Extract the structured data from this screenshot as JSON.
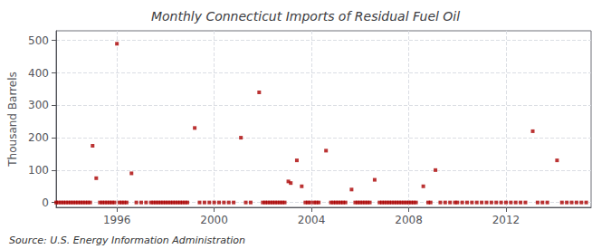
{
  "chart_data": {
    "type": "scatter",
    "title": "Monthly Connecticut Imports of Residual Fuel Oil",
    "ylabel": "Thousand Barrels",
    "annotation": "Source: U.S. Energy Information Administration",
    "color": "#aa0000",
    "marker": "square",
    "grid": true,
    "xlim": [
      1993.5,
      2015.5
    ],
    "ylim": [
      -15,
      530
    ],
    "xticks": [
      1996,
      2000,
      2004,
      2008,
      2012
    ],
    "yticks": [
      0,
      100,
      200,
      300,
      400,
      500
    ],
    "x": [
      1993.5,
      1993.6,
      1993.7,
      1993.8,
      1993.9,
      1994.0,
      1994.1,
      1994.2,
      1994.3,
      1994.4,
      1994.5,
      1994.6,
      1994.7,
      1994.8,
      1994.9,
      1995.0,
      1995.15,
      1995.3,
      1995.4,
      1995.5,
      1995.6,
      1995.7,
      1995.8,
      1995.9,
      1996.0,
      1996.1,
      1996.2,
      1996.3,
      1996.4,
      1996.6,
      1996.8,
      1997.0,
      1997.2,
      1997.4,
      1997.5,
      1997.6,
      1997.7,
      1997.8,
      1997.9,
      1998.0,
      1998.1,
      1998.2,
      1998.3,
      1998.4,
      1998.5,
      1998.6,
      1998.7,
      1998.8,
      1998.9,
      1999.2,
      1999.4,
      1999.6,
      1999.8,
      2000.0,
      2000.2,
      2000.4,
      2000.6,
      2000.8,
      2001.1,
      2001.3,
      2001.5,
      2001.85,
      2002.0,
      2002.1,
      2002.2,
      2002.3,
      2002.4,
      2002.5,
      2002.6,
      2002.7,
      2002.8,
      2002.9,
      2003.05,
      2003.15,
      2003.4,
      2003.6,
      2003.75,
      2003.85,
      2003.95,
      2004.1,
      2004.2,
      2004.3,
      2004.6,
      2004.8,
      2004.9,
      2005.0,
      2005.1,
      2005.2,
      2005.3,
      2005.4,
      2005.65,
      2005.8,
      2005.9,
      2006.0,
      2006.1,
      2006.2,
      2006.3,
      2006.4,
      2006.6,
      2006.8,
      2006.9,
      2007.0,
      2007.1,
      2007.2,
      2007.3,
      2007.4,
      2007.5,
      2007.6,
      2007.7,
      2007.8,
      2007.9,
      2008.0,
      2008.1,
      2008.2,
      2008.3,
      2008.6,
      2008.8,
      2008.9,
      2009.1,
      2009.3,
      2009.5,
      2009.7,
      2009.9,
      2010.0,
      2010.2,
      2010.4,
      2010.6,
      2010.8,
      2011.0,
      2011.2,
      2011.4,
      2011.6,
      2011.8,
      2012.0,
      2012.2,
      2012.4,
      2012.6,
      2012.8,
      2013.1,
      2013.3,
      2013.5,
      2013.7,
      2014.1,
      2014.3,
      2014.5,
      2014.7,
      2014.9,
      2015.1,
      2015.3
    ],
    "values": [
      0,
      0,
      0,
      0,
      0,
      0,
      0,
      0,
      0,
      0,
      0,
      0,
      0,
      0,
      0,
      175,
      75,
      0,
      0,
      0,
      0,
      0,
      0,
      0,
      490,
      0,
      0,
      0,
      0,
      90,
      0,
      0,
      0,
      0,
      0,
      0,
      0,
      0,
      0,
      0,
      0,
      0,
      0,
      0,
      0,
      0,
      0,
      0,
      0,
      230,
      0,
      0,
      0,
      0,
      0,
      0,
      0,
      0,
      200,
      0,
      0,
      340,
      0,
      0,
      0,
      0,
      0,
      0,
      0,
      0,
      0,
      0,
      65,
      60,
      130,
      50,
      0,
      0,
      0,
      0,
      0,
      0,
      160,
      0,
      0,
      0,
      0,
      0,
      0,
      0,
      40,
      0,
      0,
      0,
      0,
      0,
      0,
      0,
      70,
      0,
      0,
      0,
      0,
      0,
      0,
      0,
      0,
      0,
      0,
      0,
      0,
      0,
      0,
      0,
      0,
      50,
      0,
      0,
      100,
      0,
      0,
      0,
      0,
      0,
      0,
      0,
      0,
      0,
      0,
      0,
      0,
      0,
      0,
      0,
      0,
      0,
      0,
      0,
      220,
      0,
      0,
      0,
      130,
      0,
      0,
      0,
      0,
      0,
      0
    ]
  }
}
